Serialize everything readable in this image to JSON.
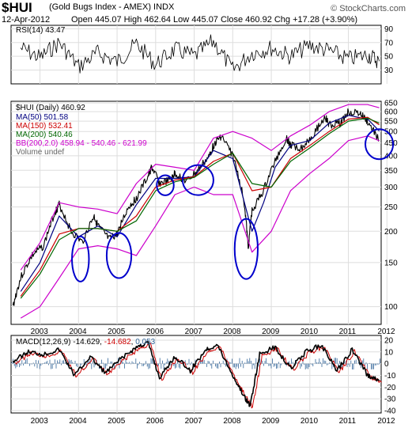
{
  "header": {
    "symbol": "$HUI",
    "name": "(Gold Bugs Index - AMEX) INDX",
    "date": "12-Apr-2012",
    "ohlc_text": "Open 445.07  High 462.64  Low 445.07  Close 460.92  Chg +17.28 (+3.90%)",
    "brand": "© StockCharts.com"
  },
  "colors": {
    "price": "#000000",
    "ma50": "#000080",
    "ma150": "#cc0000",
    "ma200": "#006600",
    "bb": "#cc00cc",
    "circle": "#0000cc",
    "macd_hist": "#336699"
  },
  "chart_data": [
    {
      "type": "line",
      "panel": "rsi",
      "legend": "RSI(14) 43.47",
      "ylim": [
        10,
        95
      ],
      "y_ticks": [
        90,
        70,
        50,
        30
      ],
      "x": [
        2003,
        2003.5,
        2004,
        2004.5,
        2005,
        2005.5,
        2006,
        2006.5,
        2007,
        2007.5,
        2008,
        2008.5,
        2009,
        2009.5,
        2010,
        2010.5,
        2011,
        2011.5,
        2012,
        2012.3
      ],
      "values": [
        62,
        48,
        70,
        35,
        55,
        42,
        68,
        38,
        60,
        50,
        72,
        30,
        55,
        62,
        50,
        66,
        58,
        46,
        52,
        43
      ]
    },
    {
      "type": "line",
      "panel": "price",
      "title": "$HUI (Daily) 460.92",
      "scale": "log",
      "ylim": [
        85,
        660
      ],
      "y_ticks": [
        650,
        600,
        550,
        500,
        450,
        400,
        350,
        300,
        250,
        200,
        150,
        100
      ],
      "x_ticks": [
        "2003",
        "2004",
        "2005",
        "2006",
        "2007",
        "2008",
        "2009",
        "2010",
        "2011",
        "2012"
      ],
      "legend": [
        {
          "label": "MA(50) 501.58",
          "color": "#000080"
        },
        {
          "label": "MA(150) 532.41",
          "color": "#cc0000"
        },
        {
          "label": "MA(200) 540.46",
          "color": "#006600"
        },
        {
          "label": "BB(200,2.0) 458.94 - 540.46 - 621.99",
          "color": "#cc00cc"
        },
        {
          "label": "Volume undef",
          "color": "#666666"
        }
      ],
      "series": [
        {
          "name": "$HUI (Daily)",
          "x": [
            2002.8,
            2003.0,
            2003.3,
            2003.6,
            2003.9,
            2004.0,
            2004.3,
            2004.6,
            2004.9,
            2005.0,
            2005.3,
            2005.5,
            2005.8,
            2006.0,
            2006.3,
            2006.4,
            2006.6,
            2006.9,
            2007.0,
            2007.3,
            2007.6,
            2007.9,
            2008.0,
            2008.2,
            2008.5,
            2008.8,
            2008.9,
            2009.0,
            2009.3,
            2009.6,
            2009.9,
            2010.0,
            2010.3,
            2010.6,
            2010.9,
            2011.0,
            2011.3,
            2011.5,
            2011.8,
            2012.0,
            2012.3
          ],
          "values": [
            100,
            130,
            160,
            175,
            240,
            255,
            200,
            180,
            230,
            210,
            185,
            195,
            250,
            270,
            330,
            360,
            310,
            320,
            340,
            315,
            350,
            400,
            440,
            480,
            400,
            260,
            170,
            240,
            290,
            380,
            470,
            440,
            430,
            490,
            570,
            530,
            540,
            600,
            590,
            545,
            461
          ]
        },
        {
          "name": "MA(50)",
          "x": [
            2003.0,
            2003.5,
            2004.0,
            2004.5,
            2005.0,
            2005.5,
            2006.0,
            2006.5,
            2007.0,
            2007.5,
            2008.0,
            2008.5,
            2009.0,
            2009.3,
            2009.6,
            2010.0,
            2010.5,
            2011.0,
            2011.5,
            2012.0,
            2012.3
          ],
          "values": [
            115,
            150,
            230,
            190,
            210,
            190,
            255,
            325,
            325,
            330,
            420,
            390,
            200,
            260,
            360,
            440,
            460,
            540,
            580,
            560,
            502
          ]
        },
        {
          "name": "MA(150)",
          "x": [
            2003.0,
            2003.5,
            2004.0,
            2004.5,
            2005.0,
            2005.5,
            2006.0,
            2006.5,
            2007.0,
            2007.5,
            2008.0,
            2008.5,
            2009.0,
            2009.5,
            2010.0,
            2010.5,
            2011.0,
            2011.5,
            2012.0,
            2012.3
          ],
          "values": [
            110,
            140,
            195,
            205,
            205,
            200,
            230,
            300,
            320,
            330,
            380,
            410,
            290,
            300,
            390,
            440,
            500,
            560,
            570,
            532
          ]
        },
        {
          "name": "MA(200)",
          "x": [
            2003.0,
            2003.5,
            2004.0,
            2004.5,
            2005.0,
            2005.5,
            2006.0,
            2006.5,
            2007.0,
            2007.5,
            2008.0,
            2008.5,
            2009.0,
            2009.5,
            2010.0,
            2010.5,
            2011.0,
            2011.5,
            2012.0,
            2012.3
          ],
          "values": [
            108,
            135,
            185,
            205,
            205,
            200,
            220,
            290,
            315,
            328,
            370,
            410,
            310,
            300,
            380,
            430,
            490,
            550,
            565,
            540
          ]
        },
        {
          "name": "BB upper",
          "x": [
            2003.0,
            2003.5,
            2004.0,
            2004.5,
            2005.0,
            2005.5,
            2006.0,
            2006.5,
            2007.0,
            2007.5,
            2008.0,
            2008.5,
            2009.0,
            2009.5,
            2010.0,
            2010.5,
            2011.0,
            2011.5,
            2012.0,
            2012.3
          ],
          "values": [
            140,
            180,
            260,
            250,
            245,
            235,
            310,
            370,
            360,
            350,
            470,
            500,
            470,
            420,
            480,
            530,
            600,
            640,
            640,
            622
          ]
        },
        {
          "name": "BB lower",
          "x": [
            2003.0,
            2003.5,
            2004.0,
            2004.5,
            2005.0,
            2005.5,
            2006.0,
            2006.5,
            2007.0,
            2007.5,
            2008.0,
            2008.5,
            2009.0,
            2009.5,
            2010.0,
            2010.5,
            2011.0,
            2011.5,
            2012.0,
            2012.3
          ],
          "values": [
            90,
            100,
            130,
            170,
            175,
            170,
            160,
            210,
            280,
            300,
            280,
            280,
            165,
            200,
            290,
            340,
            390,
            460,
            480,
            459
          ]
        }
      ],
      "annotations": [
        {
          "shape": "ellipse",
          "x": 2004.55,
          "y": 155,
          "rx_years": 0.22,
          "ry_decades": 0.09
        },
        {
          "shape": "ellipse",
          "x": 2005.55,
          "y": 160,
          "rx_years": 0.32,
          "ry_decades": 0.09
        },
        {
          "shape": "ellipse",
          "x": 2006.75,
          "y": 305,
          "rx_years": 0.22,
          "ry_decades": 0.04
        },
        {
          "shape": "ellipse",
          "x": 2007.6,
          "y": 320,
          "rx_years": 0.4,
          "ry_decades": 0.06
        },
        {
          "shape": "ellipse",
          "x": 2008.85,
          "y": 170,
          "rx_years": 0.3,
          "ry_decades": 0.12
        },
        {
          "shape": "ellipse",
          "x": 2012.3,
          "y": 445,
          "rx_years": 0.36,
          "ry_decades": 0.06
        }
      ]
    },
    {
      "type": "line",
      "panel": "macd",
      "legend_prefix": "MACD(12,26,9)",
      "legend_values": [
        "-14.629",
        "-14.682",
        "0.053"
      ],
      "ylim": [
        -42,
        24
      ],
      "y_ticks": [
        20,
        10,
        0,
        -10,
        -20,
        -30,
        -40
      ],
      "x_ticks": [
        "2003",
        "2004",
        "2005",
        "2006",
        "2007",
        "2008",
        "2009",
        "2010",
        "2011",
        "2012"
      ],
      "x": [
        2002.8,
        2003.2,
        2003.6,
        2004.0,
        2004.4,
        2004.8,
        2005.2,
        2005.6,
        2006.0,
        2006.3,
        2006.6,
        2007.0,
        2007.4,
        2007.8,
        2008.1,
        2008.5,
        2008.8,
        2008.95,
        2009.2,
        2009.6,
        2010.0,
        2010.4,
        2010.8,
        2011.2,
        2011.6,
        2012.0,
        2012.3
      ],
      "values": [
        2,
        10,
        8,
        12,
        -10,
        6,
        -8,
        4,
        14,
        18,
        -12,
        6,
        -6,
        12,
        16,
        -10,
        -28,
        -36,
        8,
        14,
        -4,
        10,
        16,
        -6,
        12,
        -10,
        -14.6
      ]
    }
  ]
}
